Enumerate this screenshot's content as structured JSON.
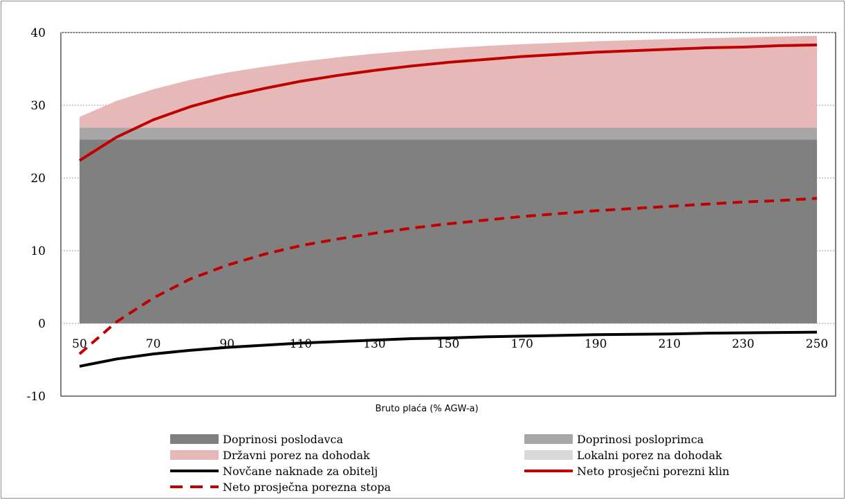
{
  "chart_data": {
    "type": "area",
    "title": "",
    "xlabel": "Bruto plaća (% AGW-a)",
    "ylabel": "",
    "ylim": [
      -10,
      40
    ],
    "xlim": [
      50,
      250
    ],
    "grid": true,
    "legend_position": "bottom",
    "x": [
      50,
      60,
      70,
      80,
      90,
      100,
      110,
      120,
      130,
      140,
      150,
      160,
      170,
      180,
      190,
      200,
      210,
      220,
      230,
      240,
      250
    ],
    "x_tick_labels": [
      "50",
      "70",
      "90",
      "110",
      "130",
      "150",
      "170",
      "190",
      "210",
      "230",
      "250"
    ],
    "y_tick_labels": [
      "-10",
      "0",
      "10",
      "20",
      "30",
      "40"
    ],
    "stacked_areas": [
      {
        "name": "Doprinosi poslodavca",
        "color": "#808080",
        "values": [
          25.3,
          25.3,
          25.3,
          25.3,
          25.3,
          25.3,
          25.3,
          25.3,
          25.3,
          25.3,
          25.3,
          25.3,
          25.3,
          25.3,
          25.3,
          25.3,
          25.3,
          25.3,
          25.3,
          25.3,
          25.3
        ]
      },
      {
        "name": "Doprinosi posloprimca",
        "color": "#a6a6a6",
        "values": [
          1.6,
          1.6,
          1.6,
          1.6,
          1.6,
          1.6,
          1.6,
          1.6,
          1.6,
          1.6,
          1.6,
          1.6,
          1.6,
          1.6,
          1.6,
          1.6,
          1.6,
          1.6,
          1.6,
          1.6,
          1.6
        ]
      },
      {
        "name": "Lokalni porez na dohodak",
        "color": "#d9d9d9",
        "values": [
          0,
          0,
          0,
          0,
          0,
          0,
          0,
          0,
          0,
          0,
          0,
          0,
          0,
          0,
          0,
          0,
          0,
          0,
          0,
          0,
          0
        ]
      },
      {
        "name": "Državni porez na dohodak",
        "color": "#e6b8b7",
        "values": [
          1.5,
          3.7,
          5.3,
          6.6,
          7.6,
          8.4,
          9.1,
          9.7,
          10.2,
          10.6,
          10.95,
          11.25,
          11.5,
          11.7,
          11.9,
          12.05,
          12.2,
          12.33,
          12.45,
          12.55,
          12.65
        ]
      }
    ],
    "lines": [
      {
        "name": "Novčane naknade za obitelj",
        "color": "#000000",
        "dash": "solid",
        "values": [
          -5.9,
          -4.9,
          -4.2,
          -3.7,
          -3.3,
          -3.0,
          -2.7,
          -2.5,
          -2.3,
          -2.1,
          -2.0,
          -1.85,
          -1.75,
          -1.65,
          -1.55,
          -1.5,
          -1.45,
          -1.35,
          -1.3,
          -1.25,
          -1.2
        ]
      },
      {
        "name": "Neto prosječni porezni klin",
        "color": "#c00000",
        "dash": "solid",
        "values": [
          22.4,
          25.6,
          28.0,
          29.8,
          31.2,
          32.3,
          33.3,
          34.1,
          34.8,
          35.4,
          35.9,
          36.3,
          36.7,
          37.0,
          37.3,
          37.5,
          37.7,
          37.9,
          38.0,
          38.2,
          38.3
        ]
      },
      {
        "name": "Neto prosječna porezna stopa",
        "color": "#c00000",
        "dash": "dashed",
        "values": [
          -4.2,
          0.2,
          3.5,
          6.1,
          8.0,
          9.5,
          10.7,
          11.6,
          12.4,
          13.1,
          13.7,
          14.2,
          14.7,
          15.1,
          15.5,
          15.8,
          16.1,
          16.4,
          16.7,
          16.9,
          17.2
        ]
      }
    ],
    "legend": [
      {
        "label": "Doprinosi poslodavca",
        "kind": "area",
        "color": "#808080"
      },
      {
        "label": "Doprinosi posloprimca",
        "kind": "area",
        "color": "#a6a6a6"
      },
      {
        "label": "Državni porez na dohodak",
        "kind": "area",
        "color": "#e6b8b7"
      },
      {
        "label": "Lokalni porez na dohodak",
        "kind": "area",
        "color": "#d9d9d9"
      },
      {
        "label": "Novčane naknade za obitelj",
        "kind": "line",
        "color": "#000000",
        "dash": "solid"
      },
      {
        "label": "Neto prosječni porezni klin",
        "kind": "line",
        "color": "#c00000",
        "dash": "solid"
      },
      {
        "label": "Neto prosječna porezna stopa",
        "kind": "line",
        "color": "#c00000",
        "dash": "dashed"
      }
    ]
  }
}
